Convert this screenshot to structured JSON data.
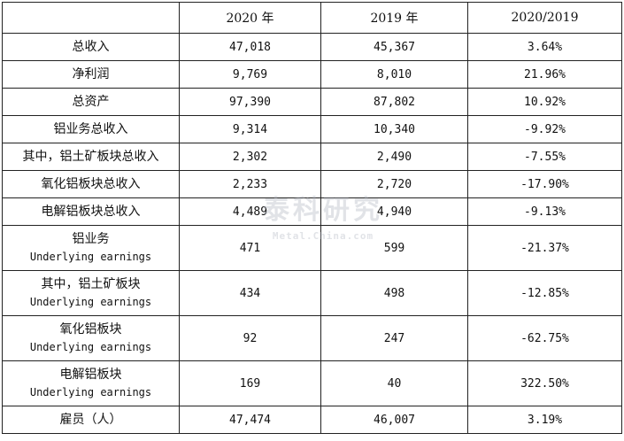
{
  "table": {
    "headers": [
      "",
      "2020 年",
      "2019 年",
      "2020/2019"
    ],
    "rows": [
      {
        "label_zh": "总收入",
        "label_en": "",
        "v2020": "47,018",
        "v2019": "45,367",
        "change": "3.64%"
      },
      {
        "label_zh": "净利润",
        "label_en": "",
        "v2020": "9,769",
        "v2019": "8,010",
        "change": "21.96%"
      },
      {
        "label_zh": "总资产",
        "label_en": "",
        "v2020": "97,390",
        "v2019": "87,802",
        "change": "10.92%"
      },
      {
        "label_zh": "铝业务总收入",
        "label_en": "",
        "v2020": "9,314",
        "v2019": "10,340",
        "change": "-9.92%"
      },
      {
        "label_zh": "其中，铝土矿板块总收入",
        "label_en": "",
        "v2020": "2,302",
        "v2019": "2,490",
        "change": "-7.55%"
      },
      {
        "label_zh": "氧化铝板块总收入",
        "label_en": "",
        "v2020": "2,233",
        "v2019": "2,720",
        "change": "-17.90%"
      },
      {
        "label_zh": "电解铝板块总收入",
        "label_en": "",
        "v2020": "4,489",
        "v2019": "4,940",
        "change": "-9.13%"
      },
      {
        "label_zh": "铝业务",
        "label_en": "Underlying earnings",
        "v2020": "471",
        "v2019": "599",
        "change": "-21.37%"
      },
      {
        "label_zh": "其中，铝土矿板块",
        "label_en": "Underlying earnings",
        "v2020": "434",
        "v2019": "498",
        "change": "-12.85%"
      },
      {
        "label_zh": "氧化铝板块",
        "label_en": "Underlying earnings",
        "v2020": "92",
        "v2019": "247",
        "change": "-62.75%"
      },
      {
        "label_zh": "电解铝板块",
        "label_en": "Underlying earnings",
        "v2020": "169",
        "v2019": "40",
        "change": "322.50%"
      },
      {
        "label_zh": "雇员（人）",
        "label_en": "",
        "v2020": "47,474",
        "v2019": "46,007",
        "change": "3.19%"
      }
    ]
  },
  "watermark": {
    "text_cn": "泰科研究",
    "text_en": "Metal.China.com"
  }
}
